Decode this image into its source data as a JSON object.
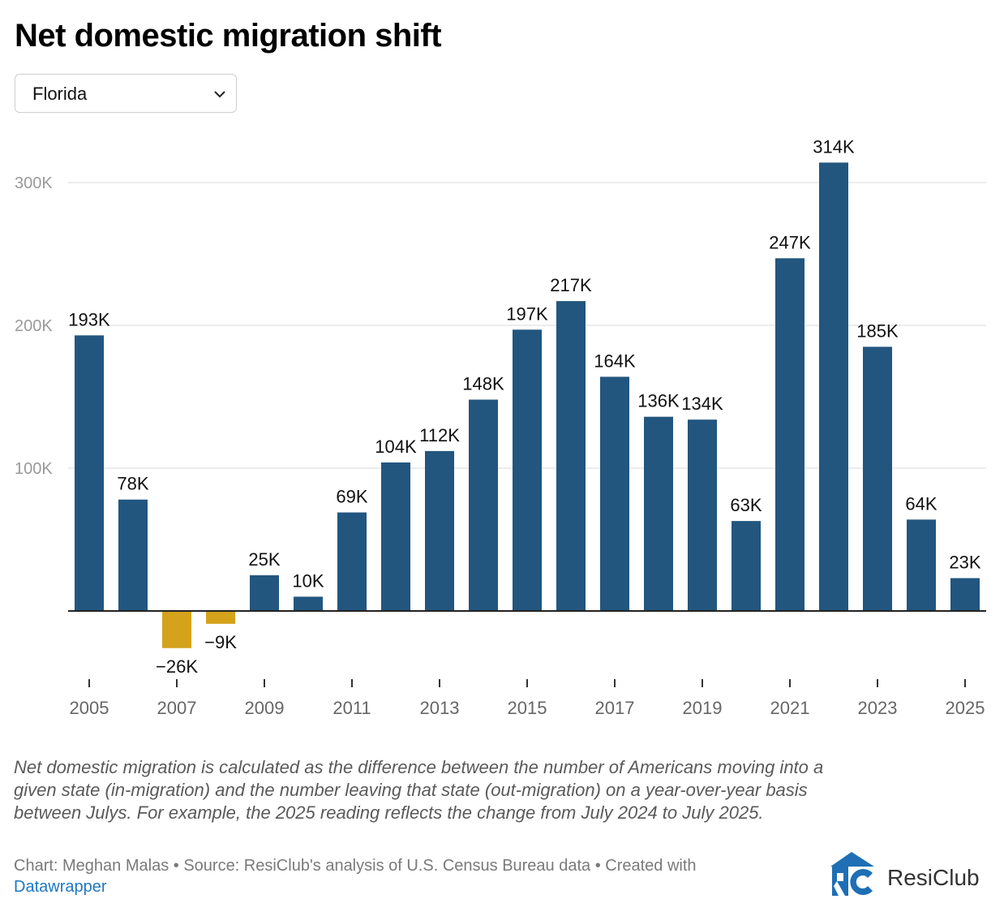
{
  "title": "Net domestic migration shift",
  "dropdown": {
    "selected": "Florida",
    "icon": "chevron-down-icon"
  },
  "colors": {
    "positive": "#22567f",
    "negative": "#d4a21b",
    "grid": "#e6e6e6",
    "axis": "#222222"
  },
  "chart_data": {
    "type": "bar",
    "title": "Net domestic migration shift",
    "xlabel": "",
    "ylabel": "",
    "categories": [
      "2005",
      "2006",
      "2007",
      "2008",
      "2009",
      "2010",
      "2011",
      "2012",
      "2013",
      "2014",
      "2015",
      "2016",
      "2017",
      "2018",
      "2019",
      "2020",
      "2021",
      "2022",
      "2023",
      "2024",
      "2025"
    ],
    "values": [
      193000,
      78000,
      -26000,
      -9000,
      25000,
      10000,
      69000,
      104000,
      112000,
      148000,
      197000,
      217000,
      164000,
      136000,
      134000,
      63000,
      247000,
      314000,
      185000,
      64000,
      23000
    ],
    "data_labels": [
      "193K",
      "78K",
      "−26K",
      "−9K",
      "25K",
      "10K",
      "69K",
      "104K",
      "112K",
      "148K",
      "197K",
      "217K",
      "164K",
      "136K",
      "134K",
      "63K",
      "247K",
      "314K",
      "185K",
      "64K",
      "23K"
    ],
    "x_tick_labels": [
      "2005",
      "2007",
      "2009",
      "2011",
      "2013",
      "2015",
      "2017",
      "2019",
      "2021",
      "2023",
      "2025"
    ],
    "y_ticks": [
      100000,
      200000,
      300000
    ],
    "y_tick_labels": [
      "100K",
      "200K",
      "300K"
    ],
    "ylim": [
      -45000,
      330000
    ],
    "grid": true
  },
  "note": "Net domestic migration is calculated as the difference between the number of Americans moving into a given state (in-migration) and the number leaving that state (out-migration) on a year-over-year basis between Julys. For example, the 2025 reading reflects the change from July 2024 to July 2025.",
  "credit": {
    "text": "Chart: Meghan Malas • Source: ResiClub's analysis of U.S. Census Bureau data • Created with",
    "link": "Datawrapper"
  },
  "logo": {
    "text": "ResiClub"
  }
}
